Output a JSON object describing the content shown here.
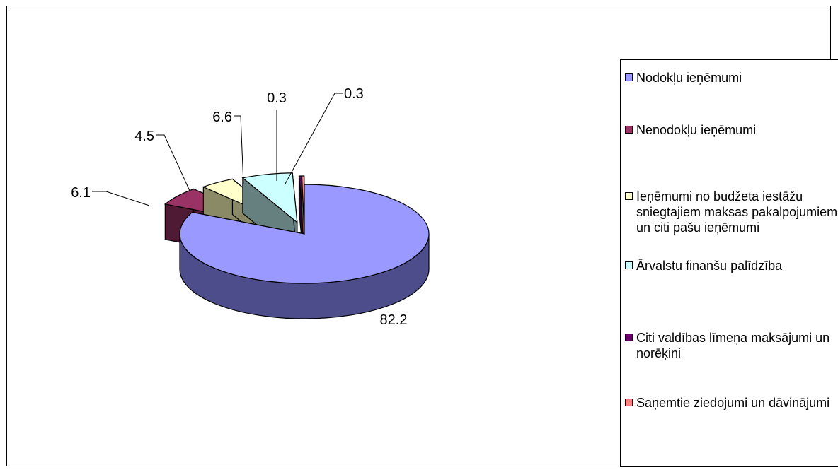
{
  "chart_data": {
    "type": "pie",
    "three_d": true,
    "title": "",
    "legend_position": "right",
    "slices": [
      {
        "name": "Nodokļu ieņēmumi",
        "value": 82.2,
        "label": "82.2",
        "color": "#9999ff",
        "side_color": "#4d4d8c"
      },
      {
        "name": "Nenodokļu ieņēmumi",
        "value": 6.1,
        "label": "6.1",
        "color": "#993366",
        "side_color": "#4f1a33"
      },
      {
        "name": "Ieņēmumi no budžeta iestāžu sniegtajiem maksas pakalpojumiem un citi pašu ieņēmumi",
        "value": 4.5,
        "label": "4.5",
        "color": "#ffffcc",
        "side_color": "#8a8a66"
      },
      {
        "name": "Ārvalstu finanšu palīdzība",
        "value": 6.6,
        "label": "6.6",
        "color": "#ccffff",
        "side_color": "#668080"
      },
      {
        "name": "Citi valdības līmeņa maksājumi un norēķini",
        "value": 0.3,
        "label": "0.3",
        "color": "#660066",
        "side_color": "#330033"
      },
      {
        "name": "Saņemtie ziedojumi un dāvinājumi",
        "value": 0.3,
        "label": "0.3",
        "color": "#ff8080",
        "side_color": "#804040"
      }
    ]
  }
}
